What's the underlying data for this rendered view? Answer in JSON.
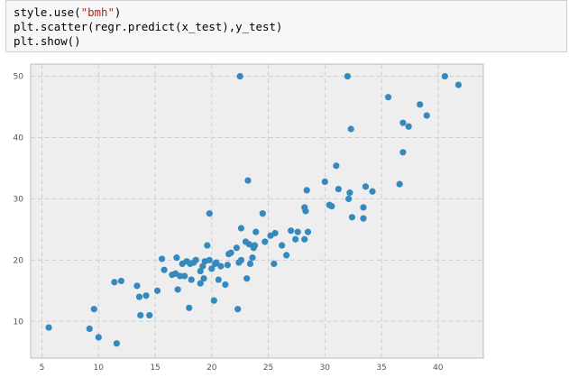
{
  "code_cell": {
    "line1_prefix": "style.use(",
    "line1_string": "\"bmh\"",
    "line1_suffix": ")",
    "line2": "plt.scatter(regr.predict(x_test),y_test)",
    "line3": "plt.show()"
  },
  "colors": {
    "point": "#348abd",
    "plot_bg": "#eeeeee",
    "grid": "#cfcfcf",
    "string": "#ba2121"
  },
  "chart_data": {
    "type": "scatter",
    "title": "",
    "xlabel": "",
    "ylabel": "",
    "xlim": [
      4,
      44
    ],
    "ylim": [
      4,
      52
    ],
    "xticks": [
      5,
      10,
      15,
      20,
      25,
      30,
      35,
      40
    ],
    "yticks": [
      10,
      20,
      30,
      40,
      50
    ],
    "grid": true,
    "points": [
      [
        5.6,
        9.0
      ],
      [
        9.2,
        8.8
      ],
      [
        9.6,
        12.0
      ],
      [
        10.0,
        7.4
      ],
      [
        11.4,
        16.4
      ],
      [
        11.6,
        6.4
      ],
      [
        12.0,
        16.6
      ],
      [
        13.4,
        15.8
      ],
      [
        13.6,
        14.0
      ],
      [
        13.7,
        11.0
      ],
      [
        14.2,
        14.2
      ],
      [
        14.5,
        11.0
      ],
      [
        15.2,
        15.0
      ],
      [
        15.6,
        20.2
      ],
      [
        15.8,
        18.4
      ],
      [
        16.5,
        17.6
      ],
      [
        16.8,
        17.8
      ],
      [
        16.9,
        20.4
      ],
      [
        17.0,
        15.2
      ],
      [
        17.2,
        17.4
      ],
      [
        17.4,
        19.4
      ],
      [
        17.6,
        17.4
      ],
      [
        17.8,
        19.8
      ],
      [
        18.0,
        12.2
      ],
      [
        18.1,
        19.4
      ],
      [
        18.2,
        16.8
      ],
      [
        18.4,
        19.6
      ],
      [
        18.6,
        20.0
      ],
      [
        19.0,
        16.2
      ],
      [
        19.0,
        18.2
      ],
      [
        19.2,
        19.0
      ],
      [
        19.3,
        17.0
      ],
      [
        19.4,
        19.8
      ],
      [
        19.6,
        22.4
      ],
      [
        19.8,
        27.6
      ],
      [
        19.8,
        20.0
      ],
      [
        20.0,
        18.6
      ],
      [
        20.2,
        13.4
      ],
      [
        20.3,
        19.4
      ],
      [
        20.4,
        19.6
      ],
      [
        20.6,
        16.8
      ],
      [
        20.8,
        19.0
      ],
      [
        21.2,
        16.0
      ],
      [
        21.4,
        19.2
      ],
      [
        21.5,
        21.0
      ],
      [
        21.7,
        21.2
      ],
      [
        22.2,
        22.0
      ],
      [
        22.3,
        12.0
      ],
      [
        22.4,
        19.6
      ],
      [
        22.6,
        20.0
      ],
      [
        22.6,
        25.2
      ],
      [
        22.5,
        50.0
      ],
      [
        23.0,
        23.0
      ],
      [
        23.1,
        17.0
      ],
      [
        23.2,
        33.0
      ],
      [
        23.3,
        22.6
      ],
      [
        23.4,
        19.4
      ],
      [
        23.6,
        20.4
      ],
      [
        23.7,
        22.0
      ],
      [
        23.8,
        22.4
      ],
      [
        23.9,
        24.6
      ],
      [
        24.5,
        27.6
      ],
      [
        24.7,
        23.0
      ],
      [
        25.2,
        24.0
      ],
      [
        25.5,
        19.4
      ],
      [
        25.6,
        24.4
      ],
      [
        26.2,
        22.4
      ],
      [
        26.6,
        20.8
      ],
      [
        27.0,
        24.8
      ],
      [
        27.4,
        23.4
      ],
      [
        27.6,
        24.6
      ],
      [
        28.2,
        23.4
      ],
      [
        28.2,
        28.6
      ],
      [
        28.3,
        28.0
      ],
      [
        28.4,
        31.4
      ],
      [
        28.5,
        24.6
      ],
      [
        30.0,
        32.8
      ],
      [
        30.4,
        29.0
      ],
      [
        30.6,
        28.8
      ],
      [
        31.0,
        35.4
      ],
      [
        31.2,
        31.6
      ],
      [
        32.0,
        50.0
      ],
      [
        32.1,
        30.0
      ],
      [
        32.2,
        31.0
      ],
      [
        32.3,
        41.4
      ],
      [
        32.4,
        27.0
      ],
      [
        33.4,
        28.6
      ],
      [
        33.4,
        26.8
      ],
      [
        33.6,
        32.0
      ],
      [
        34.2,
        31.2
      ],
      [
        35.6,
        46.6
      ],
      [
        36.6,
        32.4
      ],
      [
        36.9,
        42.4
      ],
      [
        36.9,
        37.6
      ],
      [
        37.4,
        41.8
      ],
      [
        38.4,
        45.4
      ],
      [
        39.0,
        43.6
      ],
      [
        40.6,
        50.0
      ],
      [
        41.8,
        48.6
      ]
    ]
  }
}
